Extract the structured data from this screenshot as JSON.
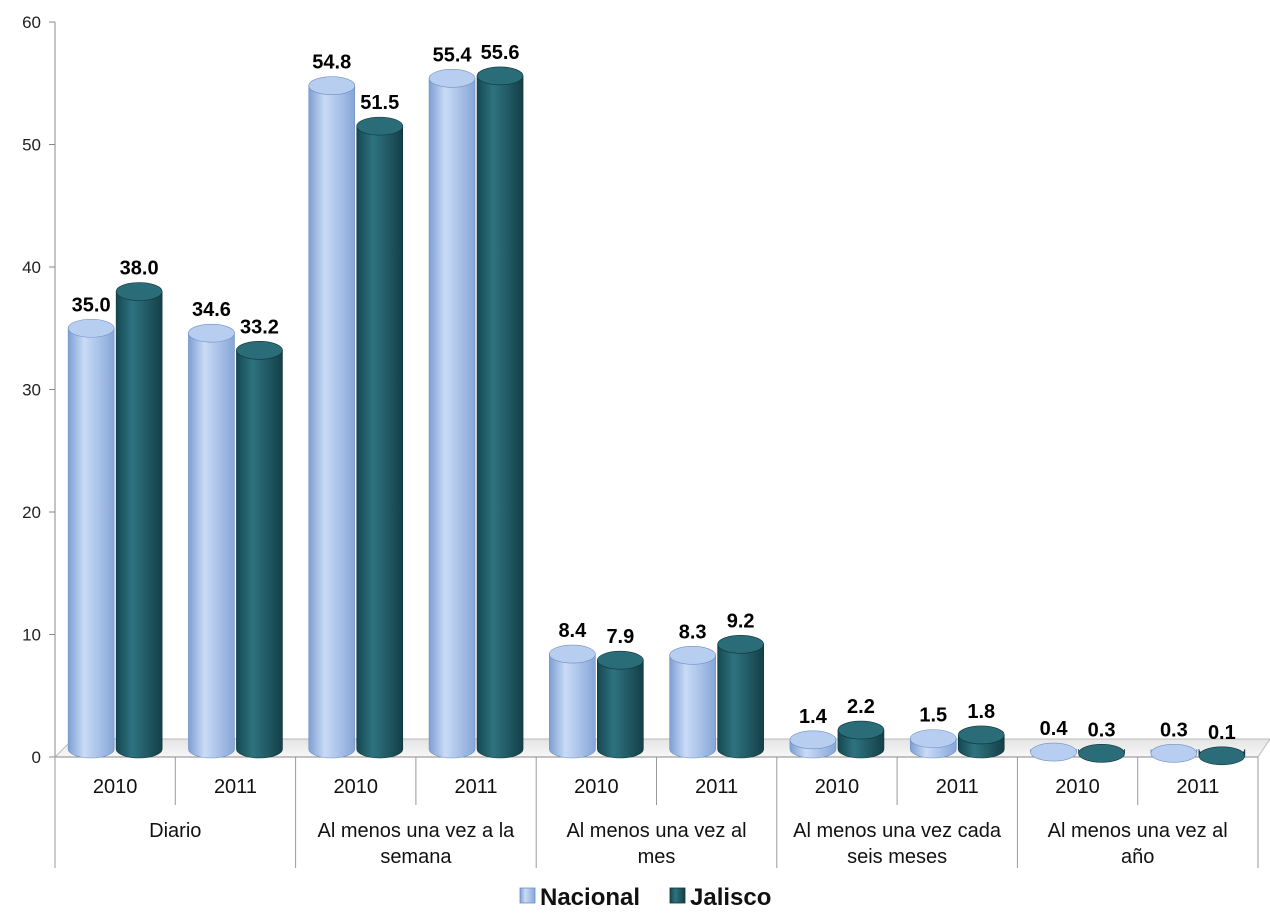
{
  "chart_data": {
    "type": "bar",
    "title": "",
    "xlabel": "",
    "ylabel": "",
    "ylim": [
      0,
      60
    ],
    "yticks": [
      "0",
      "10",
      "20",
      "30",
      "40",
      "50",
      "60"
    ],
    "groups": [
      {
        "label": "Diario",
        "years": [
          "2010",
          "2011"
        ]
      },
      {
        "label": "Al menos una vez a la semana",
        "years": [
          "2010",
          "2011"
        ]
      },
      {
        "label": "Al menos una vez al mes",
        "years": [
          "2010",
          "2011"
        ]
      },
      {
        "label": "Al menos una vez cada seis meses",
        "years": [
          "2010",
          "2011"
        ]
      },
      {
        "label": "Al menos una vez al año",
        "years": [
          "2010",
          "2011"
        ]
      }
    ],
    "categories": [
      "2010",
      "2011",
      "2010",
      "2011",
      "2010",
      "2011",
      "2010",
      "2011",
      "2010",
      "2011"
    ],
    "series": [
      {
        "name": "Nacional",
        "color": "#9DBDEB",
        "values": [
          35.0,
          34.6,
          54.8,
          55.4,
          8.4,
          8.3,
          1.4,
          1.5,
          0.4,
          0.3
        ],
        "labels": [
          "35.0",
          "34.6",
          "54.8",
          "55.4",
          "8.4",
          "8.3",
          "1.4",
          "1.5",
          "0.4",
          "0.3"
        ]
      },
      {
        "name": "Jalisco",
        "color": "#1F5C66",
        "values": [
          38.0,
          33.2,
          51.5,
          55.6,
          7.9,
          9.2,
          2.2,
          1.8,
          0.3,
          0.1
        ],
        "labels": [
          "38.0",
          "33.2",
          "51.5",
          "55.6",
          "7.9",
          "9.2",
          "2.2",
          "1.8",
          "0.3",
          "0.1"
        ]
      }
    ],
    "grid": false,
    "legend": "bottom"
  }
}
